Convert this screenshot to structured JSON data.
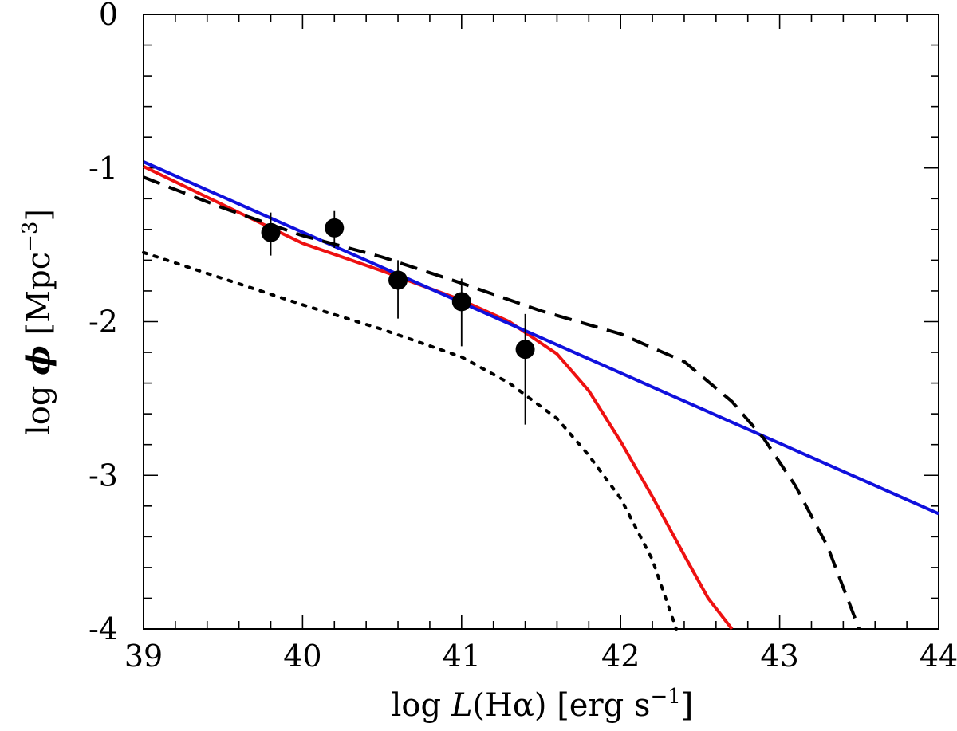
{
  "chart_data": {
    "type": "scatter",
    "title": "",
    "xlabel": {
      "prefix": "log ",
      "var": "L",
      "paren": "(Hα)",
      "unit_open": " [erg s",
      "exp": "−1",
      "unit_close": "]"
    },
    "ylabel": {
      "prefix": "log ",
      "var": "ϕ",
      "unit_open": "  [Mpc",
      "exp": "−3",
      "unit_close": "]"
    },
    "xlim": [
      39,
      44
    ],
    "ylim": [
      -4,
      0
    ],
    "x_ticks": [
      39,
      40,
      41,
      42,
      43,
      44
    ],
    "x_tick_labels": [
      "39",
      "40",
      "41",
      "42",
      "43",
      "44"
    ],
    "y_ticks": [
      0,
      -1,
      -2,
      -3,
      -4
    ],
    "y_tick_labels": [
      "0",
      "-1",
      "-2",
      "-3",
      "-4"
    ],
    "x_minor_step": 0.2,
    "y_minor_step": 0.2,
    "grid": false,
    "points": [
      {
        "x": 39.8,
        "y": -1.42,
        "err_low": 0.15,
        "err_high": 0.13
      },
      {
        "x": 40.2,
        "y": -1.39,
        "err_low": 0.13,
        "err_high": 0.11
      },
      {
        "x": 40.6,
        "y": -1.73,
        "err_low": 0.25,
        "err_high": 0.13
      },
      {
        "x": 41.0,
        "y": -1.87,
        "err_low": 0.29,
        "err_high": 0.15
      },
      {
        "x": 41.4,
        "y": -2.18,
        "err_low": 0.49,
        "err_high": 0.23
      }
    ],
    "series": [
      {
        "name": "fit-schechter-red",
        "color": "#ee1111",
        "dash": "solid",
        "x": [
          39.0,
          39.5,
          40.0,
          40.5,
          41.0,
          41.3,
          41.6,
          41.8,
          42.0,
          42.2,
          42.4,
          42.55,
          42.7
        ],
        "y": [
          -0.99,
          -1.24,
          -1.49,
          -1.67,
          -1.86,
          -2.0,
          -2.21,
          -2.45,
          -2.78,
          -3.14,
          -3.52,
          -3.8,
          -4.0
        ]
      },
      {
        "name": "fit-powerlaw-blue",
        "color": "#1010dd",
        "dash": "solid",
        "x": [
          39.0,
          44.0
        ],
        "y": [
          -0.96,
          -3.25
        ]
      },
      {
        "name": "model-dashed",
        "color": "#000000",
        "dash": "dashed",
        "x": [
          39.0,
          39.5,
          40.0,
          40.5,
          41.0,
          41.5,
          42.0,
          42.4,
          42.7,
          42.9,
          43.1,
          43.3,
          43.5
        ],
        "y": [
          -1.06,
          -1.26,
          -1.44,
          -1.58,
          -1.75,
          -1.93,
          -2.08,
          -2.26,
          -2.52,
          -2.76,
          -3.07,
          -3.46,
          -4.0
        ]
      },
      {
        "name": "model-dotted",
        "color": "#000000",
        "dash": "dotted",
        "x": [
          39.0,
          39.5,
          40.0,
          40.5,
          41.0,
          41.3,
          41.6,
          41.8,
          42.0,
          42.2,
          42.35
        ],
        "y": [
          -1.55,
          -1.72,
          -1.89,
          -2.05,
          -2.23,
          -2.4,
          -2.63,
          -2.87,
          -3.15,
          -3.55,
          -4.0
        ]
      }
    ]
  }
}
